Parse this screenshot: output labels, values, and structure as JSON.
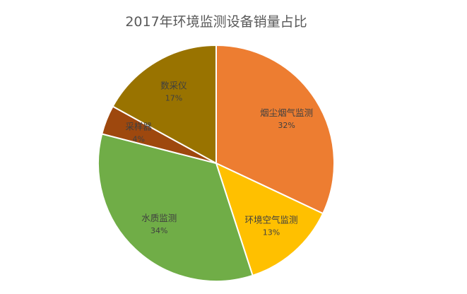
{
  "chart_data": {
    "type": "pie",
    "title": "2017年环境监测设备销量占比",
    "slices": [
      {
        "label": "烟尘烟气监测",
        "value": 32,
        "display": "32%",
        "color": "#ED7D31"
      },
      {
        "label": "环境空气监测",
        "value": 13,
        "display": "13%",
        "color": "#FFC000"
      },
      {
        "label": "水质监测",
        "value": 34,
        "display": "34%",
        "color": "#70AD47"
      },
      {
        "label": "采样器",
        "value": 4,
        "display": "4%",
        "color": "#9E480E"
      },
      {
        "label": "数采仪",
        "value": 17,
        "display": "17%",
        "color": "#997300"
      }
    ],
    "legend": "none",
    "data_labels": "inside"
  }
}
